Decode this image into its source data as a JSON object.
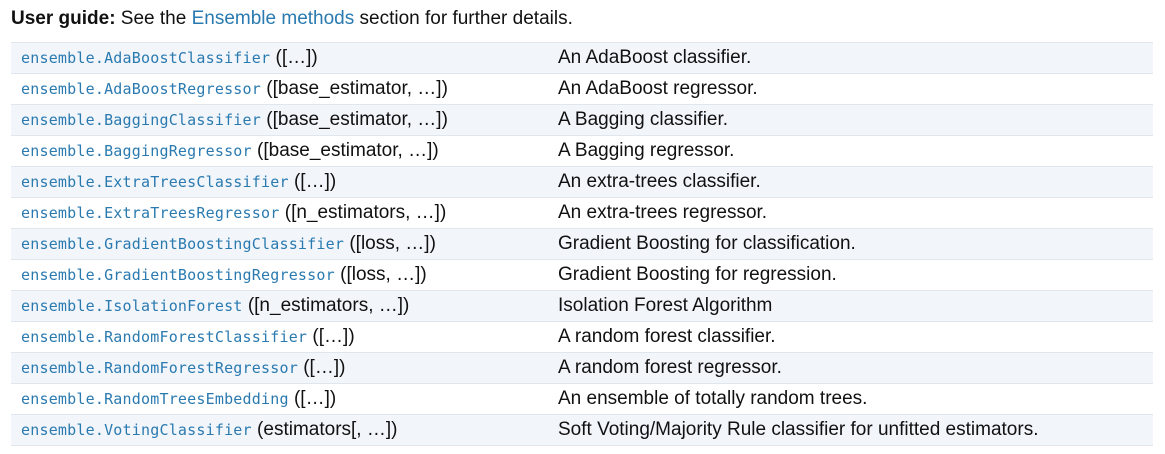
{
  "guide": {
    "prefix": "User guide:",
    "text_before": " See the ",
    "link": "Ensemble methods",
    "text_after": " section for further details."
  },
  "rows": [
    {
      "name": "ensemble.AdaBoostClassifier",
      "sig": " ([…])",
      "desc": "An AdaBoost classifier."
    },
    {
      "name": "ensemble.AdaBoostRegressor",
      "sig": " ([base_estimator, …])",
      "desc": "An AdaBoost regressor."
    },
    {
      "name": "ensemble.BaggingClassifier",
      "sig": " ([base_estimator, …])",
      "desc": "A Bagging classifier."
    },
    {
      "name": "ensemble.BaggingRegressor",
      "sig": " ([base_estimator, …])",
      "desc": "A Bagging regressor."
    },
    {
      "name": "ensemble.ExtraTreesClassifier",
      "sig": " ([…])",
      "desc": "An extra-trees classifier."
    },
    {
      "name": "ensemble.ExtraTreesRegressor",
      "sig": " ([n_estimators, …])",
      "desc": "An extra-trees regressor."
    },
    {
      "name": "ensemble.GradientBoostingClassifier",
      "sig": " ([loss, …])",
      "desc": "Gradient Boosting for classification."
    },
    {
      "name": "ensemble.GradientBoostingRegressor",
      "sig": " ([loss, …])",
      "desc": "Gradient Boosting for regression."
    },
    {
      "name": "ensemble.IsolationForest",
      "sig": " ([n_estimators, …])",
      "desc": "Isolation Forest Algorithm"
    },
    {
      "name": "ensemble.RandomForestClassifier",
      "sig": " ([…])",
      "desc": "A random forest classifier."
    },
    {
      "name": "ensemble.RandomForestRegressor",
      "sig": " ([…])",
      "desc": "A random forest regressor."
    },
    {
      "name": "ensemble.RandomTreesEmbedding",
      "sig": " ([…])",
      "desc": "An ensemble of totally random trees."
    },
    {
      "name": "ensemble.VotingClassifier",
      "sig": " (estimators[, …])",
      "desc": "Soft Voting/Majority Rule classifier for unfitted estimators."
    }
  ],
  "colors": {
    "link": "#2a7ab0",
    "row_stripe": "#f2f6fb",
    "row_border": "#dfe6ee"
  }
}
